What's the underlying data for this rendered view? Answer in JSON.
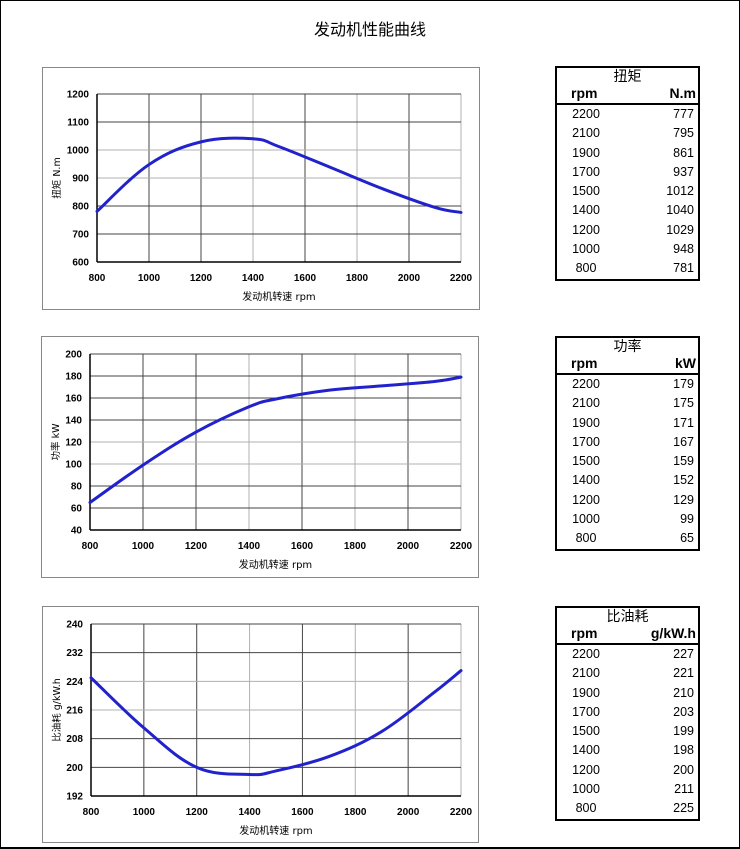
{
  "page": {
    "title": "发动机性能曲线"
  },
  "colors": {
    "curve": "#2222cc",
    "grid_dark": "#444444",
    "grid_light": "#b0b0b0",
    "frame": "#888888"
  },
  "tables": {
    "torque": {
      "title": "扭矩",
      "col1": "rpm",
      "col2": "N.m",
      "rows": [
        [
          "2200",
          "777"
        ],
        [
          "2100",
          "795"
        ],
        [
          "1900",
          "861"
        ],
        [
          "1700",
          "937"
        ],
        [
          "1500",
          "1012"
        ],
        [
          "1400",
          "1040"
        ],
        [
          "1200",
          "1029"
        ],
        [
          "1000",
          "948"
        ],
        [
          "800",
          "781"
        ]
      ]
    },
    "power": {
      "title": "功率",
      "col1": "rpm",
      "col2": "kW",
      "rows": [
        [
          "2200",
          "179"
        ],
        [
          "2100",
          "175"
        ],
        [
          "1900",
          "171"
        ],
        [
          "1700",
          "167"
        ],
        [
          "1500",
          "159"
        ],
        [
          "1400",
          "152"
        ],
        [
          "1200",
          "129"
        ],
        [
          "1000",
          "99"
        ],
        [
          "800",
          "65"
        ]
      ]
    },
    "bsfc": {
      "title": "比油耗",
      "col1": "rpm",
      "col2": "g/kW.h",
      "rows": [
        [
          "2200",
          "227"
        ],
        [
          "2100",
          "221"
        ],
        [
          "1900",
          "210"
        ],
        [
          "1700",
          "203"
        ],
        [
          "1500",
          "199"
        ],
        [
          "1400",
          "198"
        ],
        [
          "1200",
          "200"
        ],
        [
          "1000",
          "211"
        ],
        [
          "800",
          "225"
        ]
      ]
    }
  },
  "chart_data": [
    {
      "type": "line",
      "title": "",
      "xlabel": "发动机转速  rpm",
      "ylabel": "扭矩 N.m",
      "xlim": [
        800,
        2200
      ],
      "ylim": [
        600,
        1200
      ],
      "xticks": [
        800,
        1000,
        1200,
        1400,
        1600,
        1800,
        2000,
        2200
      ],
      "yticks": [
        600,
        700,
        800,
        900,
        1000,
        1100,
        1200
      ],
      "grid": true,
      "series": [
        {
          "name": "扭矩",
          "x": [
            800,
            1000,
            1200,
            1400,
            1500,
            1700,
            1900,
            2100,
            2200
          ],
          "values": [
            781,
            948,
            1029,
            1040,
            1012,
            937,
            861,
            795,
            777
          ]
        }
      ]
    },
    {
      "type": "line",
      "title": "",
      "xlabel": "发动机转速 rpm",
      "ylabel": "功率  kW",
      "xlim": [
        800,
        2200
      ],
      "ylim": [
        40,
        200
      ],
      "xticks": [
        800,
        1000,
        1200,
        1400,
        1600,
        1800,
        2000,
        2200
      ],
      "yticks": [
        40,
        60,
        80,
        100,
        120,
        140,
        160,
        180,
        200
      ],
      "grid": true,
      "series": [
        {
          "name": "功率",
          "x": [
            800,
            1000,
            1200,
            1400,
            1500,
            1700,
            1900,
            2100,
            2200
          ],
          "values": [
            65,
            99,
            129,
            152,
            159,
            167,
            171,
            175,
            179
          ]
        }
      ]
    },
    {
      "type": "line",
      "title": "",
      "xlabel": "发动机转速  rpm",
      "ylabel": "比油耗  g/kW.h",
      "xlim": [
        800,
        2200
      ],
      "ylim": [
        192,
        240
      ],
      "xticks": [
        800,
        1000,
        1200,
        1400,
        1600,
        1800,
        2000,
        2200
      ],
      "yticks": [
        192,
        200,
        208,
        216,
        224,
        232,
        240
      ],
      "grid": true,
      "series": [
        {
          "name": "比油耗",
          "x": [
            800,
            1000,
            1200,
            1400,
            1500,
            1700,
            1900,
            2100,
            2200
          ],
          "values": [
            225,
            211,
            200,
            198,
            199,
            203,
            210,
            221,
            227
          ]
        }
      ]
    }
  ]
}
